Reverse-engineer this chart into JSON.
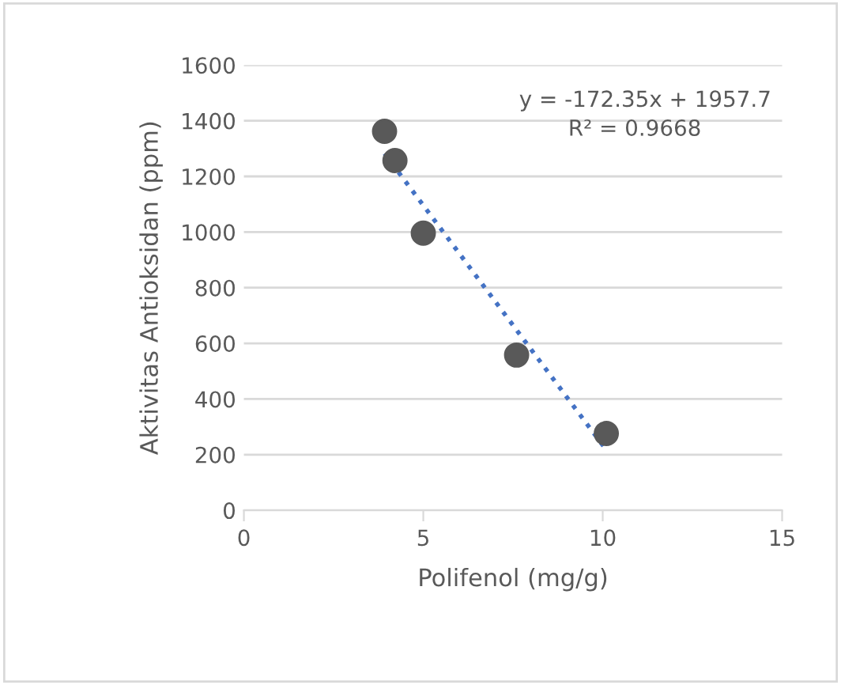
{
  "chart_data": {
    "type": "scatter",
    "xlabel": "Polifenol (mg/g)",
    "ylabel": "Aktivitas Antioksidan (ppm)",
    "xlim": [
      0,
      15
    ],
    "xticks": [
      0,
      5,
      10,
      15
    ],
    "ylim": [
      0,
      1600
    ],
    "yticks": [
      0,
      200,
      400,
      600,
      800,
      1000,
      1200,
      1400,
      1600
    ],
    "grid": "y",
    "marker": "circle",
    "series": [
      {
        "color": "#595959",
        "x": [
          3.92,
          4.21,
          5.0,
          7.6,
          10.1
        ],
        "values": [
          1362,
          1257,
          996,
          558,
          276
        ]
      },
      {
        "type": "line",
        "color": "#4472c4",
        "line_style": "dotted",
        "marker": "none",
        "x": [
          3.92,
          10.1
        ],
        "values": [
          1282,
          217
        ]
      }
    ],
    "annotations": [
      "y = -172.35x + 1957.7",
      "R² = 0.9668"
    ]
  }
}
